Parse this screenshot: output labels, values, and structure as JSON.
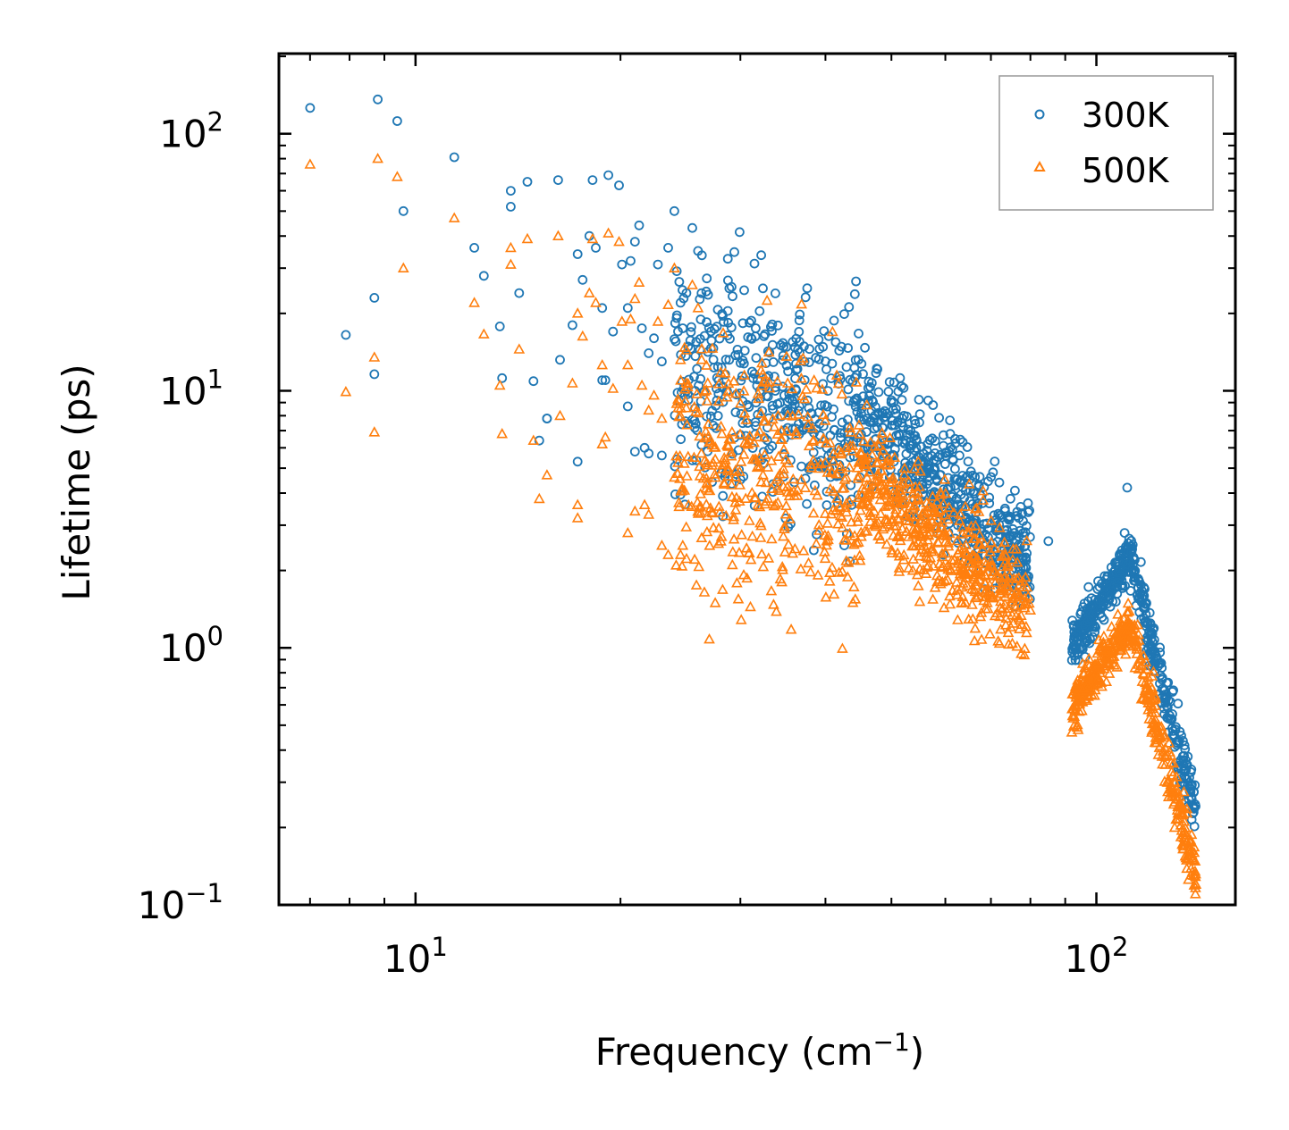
{
  "chart_data": {
    "type": "scatter",
    "xlabel": "Frequency (cm",
    "xlabel_sup": "−1",
    "xlabel_end": ")",
    "ylabel": "Lifetime (ps)",
    "xscale": "log",
    "yscale": "log",
    "xlim": [
      6.3,
      160
    ],
    "ylim": [
      0.1,
      205
    ],
    "x_ticks": [
      {
        "value": 10,
        "base": "10",
        "exp": "1"
      },
      {
        "value": 100,
        "base": "10",
        "exp": "2"
      }
    ],
    "y_ticks": [
      {
        "value": 0.1,
        "base": "10",
        "exp": "−1"
      },
      {
        "value": 1,
        "base": "10",
        "exp": "0"
      },
      {
        "value": 10,
        "base": "10",
        "exp": "1"
      },
      {
        "value": 100,
        "base": "10",
        "exp": "2"
      }
    ],
    "legend_position": "top-right",
    "series": [
      {
        "name": "300K",
        "marker": "circle",
        "color": "#1f77b4",
        "points": [
          [
            7.0,
            126
          ],
          [
            7.9,
            16.5
          ],
          [
            8.7,
            23
          ],
          [
            8.7,
            11.6
          ],
          [
            8.8,
            136
          ],
          [
            9.4,
            112
          ],
          [
            9.6,
            50
          ],
          [
            11.4,
            81
          ],
          [
            12.2,
            36
          ],
          [
            12.6,
            28
          ],
          [
            13.3,
            17.8
          ],
          [
            13.4,
            11.2
          ],
          [
            13.8,
            52
          ],
          [
            13.8,
            60
          ],
          [
            14.2,
            24
          ],
          [
            14.6,
            65
          ],
          [
            14.9,
            10.9
          ],
          [
            15.2,
            6.4
          ],
          [
            15.6,
            7.8
          ],
          [
            16.2,
            66
          ],
          [
            16.3,
            13.2
          ],
          [
            17.0,
            18
          ],
          [
            17.3,
            34
          ],
          [
            17.6,
            27
          ],
          [
            18.0,
            40
          ],
          [
            18.2,
            66
          ],
          [
            18.4,
            36
          ],
          [
            18.8,
            21
          ],
          [
            19.0,
            11
          ],
          [
            19.2,
            69
          ],
          [
            19.5,
            17
          ],
          [
            19.9,
            63
          ],
          [
            20.1,
            31
          ],
          [
            20.5,
            21
          ],
          [
            20.7,
            32
          ],
          [
            21.0,
            38
          ],
          [
            21.3,
            44
          ],
          [
            21.5,
            17.5
          ],
          [
            21.7,
            6.0
          ],
          [
            22.0,
            14
          ],
          [
            22.4,
            16
          ],
          [
            22.7,
            31
          ],
          [
            23.0,
            13
          ],
          [
            23.5,
            36
          ],
          [
            24.0,
            50
          ],
          [
            24.5,
            22
          ],
          [
            25.0,
            24
          ],
          [
            25.5,
            43
          ],
          [
            26.0,
            35
          ],
          [
            20.5,
            8.7
          ],
          [
            21.0,
            5.8
          ],
          [
            22.0,
            5.7
          ],
          [
            23.0,
            5.6
          ],
          [
            17.3,
            5.3
          ],
          [
            18.8,
            11
          ],
          [
            15.6,
            7.8
          ]
        ],
        "clusters": [
          {
            "x": [
              24,
              45
            ],
            "y_center_at_start": 12,
            "y_center_at_end": 8,
            "spread_decades": 0.5,
            "count": 420
          },
          {
            "x": [
              45,
              80
            ],
            "y_center_at_start": 8,
            "y_center_at_end": 2.2,
            "spread_decades": 0.25,
            "count": 520
          },
          {
            "x": [
              92,
              112
            ],
            "y_center_at_start": 1.0,
            "y_center_at_end": 2.3,
            "spread_decades": 0.1,
            "count": 240
          },
          {
            "x": [
              112,
              140
            ],
            "y_center_at_start": 2.3,
            "y_center_at_end": 0.23,
            "spread_decades": 0.12,
            "count": 220
          }
        ],
        "extra_points": [
          [
            111,
            4.2
          ],
          [
            110,
            2.8
          ],
          [
            62,
            6.5
          ],
          [
            54,
            6.7
          ],
          [
            79,
            1.9
          ],
          [
            61,
            6.8
          ],
          [
            85,
            2.6
          ]
        ]
      },
      {
        "name": "500K",
        "marker": "triangle",
        "color": "#ff7f0e",
        "points": [
          [
            7.0,
            76
          ],
          [
            7.9,
            9.9
          ],
          [
            8.7,
            13.5
          ],
          [
            8.7,
            6.9
          ],
          [
            8.8,
            80
          ],
          [
            9.4,
            68
          ],
          [
            9.6,
            30
          ],
          [
            11.4,
            47
          ],
          [
            12.2,
            22
          ],
          [
            12.6,
            16.6
          ],
          [
            13.3,
            10.5
          ],
          [
            13.4,
            6.8
          ],
          [
            13.8,
            31
          ],
          [
            13.8,
            36
          ],
          [
            14.2,
            14.5
          ],
          [
            14.6,
            39
          ],
          [
            14.9,
            6.4
          ],
          [
            15.2,
            3.8
          ],
          [
            15.6,
            4.7
          ],
          [
            16.2,
            40
          ],
          [
            16.3,
            8.0
          ],
          [
            17.0,
            10.7
          ],
          [
            17.3,
            20
          ],
          [
            17.6,
            16.3
          ],
          [
            18.0,
            24
          ],
          [
            18.2,
            39
          ],
          [
            18.4,
            22
          ],
          [
            18.8,
            12.6
          ],
          [
            19.0,
            6.6
          ],
          [
            19.2,
            41
          ],
          [
            19.5,
            10.2
          ],
          [
            19.9,
            38
          ],
          [
            20.1,
            18.6
          ],
          [
            20.5,
            12.6
          ],
          [
            20.7,
            19
          ],
          [
            21.0,
            22.8
          ],
          [
            21.3,
            26.4
          ],
          [
            21.5,
            10.5
          ],
          [
            21.7,
            3.6
          ],
          [
            22.0,
            8.4
          ],
          [
            22.4,
            9.6
          ],
          [
            22.7,
            18.6
          ],
          [
            23.0,
            7.8
          ],
          [
            23.5,
            21.6
          ],
          [
            24.0,
            30
          ],
          [
            24.5,
            13.2
          ],
          [
            25.0,
            14.4
          ],
          [
            25.5,
            25.8
          ],
          [
            26.0,
            21
          ],
          [
            20.5,
            2.8
          ],
          [
            21.0,
            3.4
          ],
          [
            22.0,
            3.3
          ],
          [
            23.0,
            2.5
          ],
          [
            17.3,
            3.6
          ],
          [
            17.3,
            3.2
          ],
          [
            18.8,
            6.2
          ],
          [
            24.5,
            2.3
          ],
          [
            23.5,
            2.3
          ]
        ],
        "clusters": [
          {
            "x": [
              24,
              45
            ],
            "y_center_at_start": 5.0,
            "y_center_at_end": 4.0,
            "spread_decades": 0.55,
            "count": 420
          },
          {
            "x": [
              45,
              80
            ],
            "y_center_at_start": 4.5,
            "y_center_at_end": 1.4,
            "spread_decades": 0.25,
            "count": 520
          },
          {
            "x": [
              92,
              112
            ],
            "y_center_at_start": 0.58,
            "y_center_at_end": 1.25,
            "spread_decades": 0.1,
            "count": 240
          },
          {
            "x": [
              112,
              140
            ],
            "y_center_at_start": 1.25,
            "y_center_at_end": 0.13,
            "spread_decades": 0.12,
            "count": 220
          }
        ],
        "extra_points": [
          [
            46,
            8.8
          ],
          [
            94,
            0.48
          ],
          [
            140,
            0.12
          ],
          [
            139,
            0.13
          ],
          [
            80,
            1.4
          ]
        ]
      }
    ]
  }
}
